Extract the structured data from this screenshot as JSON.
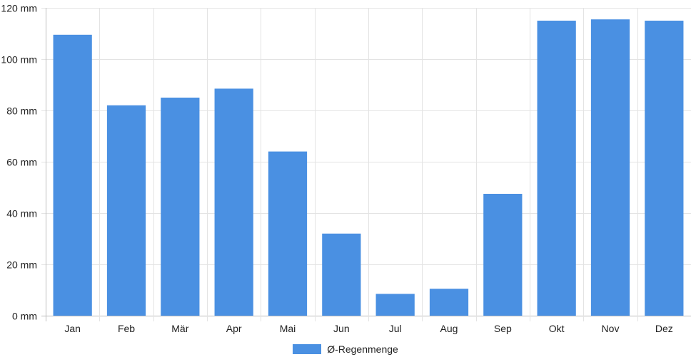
{
  "chart_data": {
    "type": "bar",
    "categories": [
      "Jan",
      "Feb",
      "Mär",
      "Apr",
      "Mai",
      "Jun",
      "Jul",
      "Aug",
      "Sep",
      "Okt",
      "Nov",
      "Dez"
    ],
    "series": [
      {
        "name": "Ø-Regenmenge",
        "values": [
          109.5,
          82,
          85,
          88.5,
          64,
          32,
          8.5,
          10.5,
          47.5,
          115,
          115.5,
          115
        ],
        "color": "#4a90e2"
      }
    ],
    "ylim": [
      0,
      120
    ],
    "yticks": [
      0,
      20,
      40,
      60,
      80,
      100,
      120
    ],
    "ytick_labels": [
      "0 mm",
      "20 mm",
      "40 mm",
      "60 mm",
      "80 mm",
      "100 mm",
      "120 mm"
    ],
    "grid": true,
    "legend_position": "bottom-center"
  }
}
